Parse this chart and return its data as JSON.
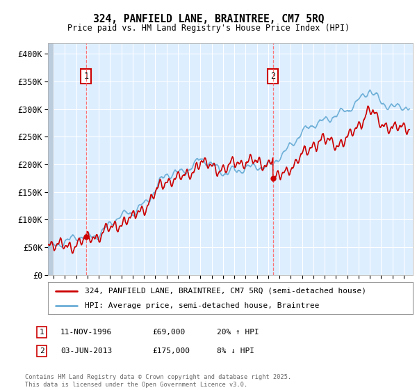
{
  "title_line1": "324, PANFIELD LANE, BRAINTREE, CM7 5RQ",
  "title_line2": "Price paid vs. HM Land Registry's House Price Index (HPI)",
  "ylim": [
    0,
    420000
  ],
  "yticks": [
    0,
    50000,
    100000,
    150000,
    200000,
    250000,
    300000,
    350000,
    400000
  ],
  "ytick_labels": [
    "£0",
    "£50K",
    "£100K",
    "£150K",
    "£200K",
    "£250K",
    "£300K",
    "£350K",
    "£400K"
  ],
  "hpi_color": "#6baed6",
  "price_color": "#cc0000",
  "sale1_year": 1996.87,
  "sale1_price": 69000,
  "sale2_year": 2013.42,
  "sale2_price": 175000,
  "legend_line1": "324, PANFIELD LANE, BRAINTREE, CM7 5RQ (semi-detached house)",
  "legend_line2": "HPI: Average price, semi-detached house, Braintree",
  "ann1_date": "11-NOV-1996",
  "ann1_price": "£69,000",
  "ann1_pct": "20% ↑ HPI",
  "ann2_date": "03-JUN-2013",
  "ann2_price": "£175,000",
  "ann2_pct": "8% ↓ HPI",
  "footnote": "Contains HM Land Registry data © Crown copyright and database right 2025.\nThis data is licensed under the Open Government Licence v3.0.",
  "plot_bg_color": "#ddeeff",
  "fig_bg_color": "#ffffff",
  "hatch_color": "#bbccdd",
  "grid_color": "#ffffff",
  "vline_color": "#ff6666"
}
